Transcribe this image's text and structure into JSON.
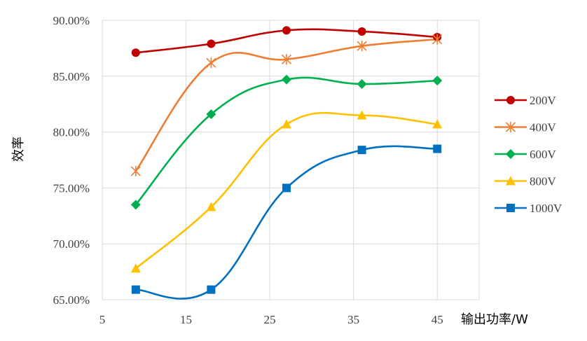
{
  "chart_data": {
    "type": "line",
    "title": "",
    "xlabel": "输出功率/W",
    "ylabel": "效率",
    "xlim": [
      5,
      50
    ],
    "ylim": [
      65,
      90
    ],
    "x_ticks": [
      5,
      15,
      25,
      35,
      45
    ],
    "x_tick_labels": [
      "5",
      "15",
      "25",
      "35",
      "45"
    ],
    "y_ticks": [
      65,
      70,
      75,
      80,
      85,
      90
    ],
    "y_tick_labels": [
      "65.00%",
      "70.00%",
      "75.00%",
      "80.00%",
      "85.00%",
      "90.00%"
    ],
    "grid": true,
    "smooth": true,
    "legend_position": "right",
    "x": [
      9,
      18,
      27,
      36,
      45
    ],
    "series": [
      {
        "name": "200V",
        "color": "#C00000",
        "marker": "circle",
        "values": [
          87.1,
          87.9,
          89.1,
          89.0,
          88.5
        ]
      },
      {
        "name": "400V",
        "color": "#ED7D31",
        "marker": "asterisk",
        "values": [
          76.5,
          86.2,
          86.5,
          87.7,
          88.3
        ]
      },
      {
        "name": "600V",
        "color": "#00B050",
        "marker": "diamond",
        "values": [
          73.5,
          81.6,
          84.7,
          84.3,
          84.6
        ]
      },
      {
        "name": "800V",
        "color": "#FFC000",
        "marker": "triangle",
        "values": [
          67.8,
          73.3,
          80.7,
          81.5,
          80.7
        ]
      },
      {
        "name": "1000V",
        "color": "#0070C0",
        "marker": "square",
        "values": [
          65.9,
          65.9,
          75.0,
          78.4,
          78.5
        ]
      }
    ]
  }
}
